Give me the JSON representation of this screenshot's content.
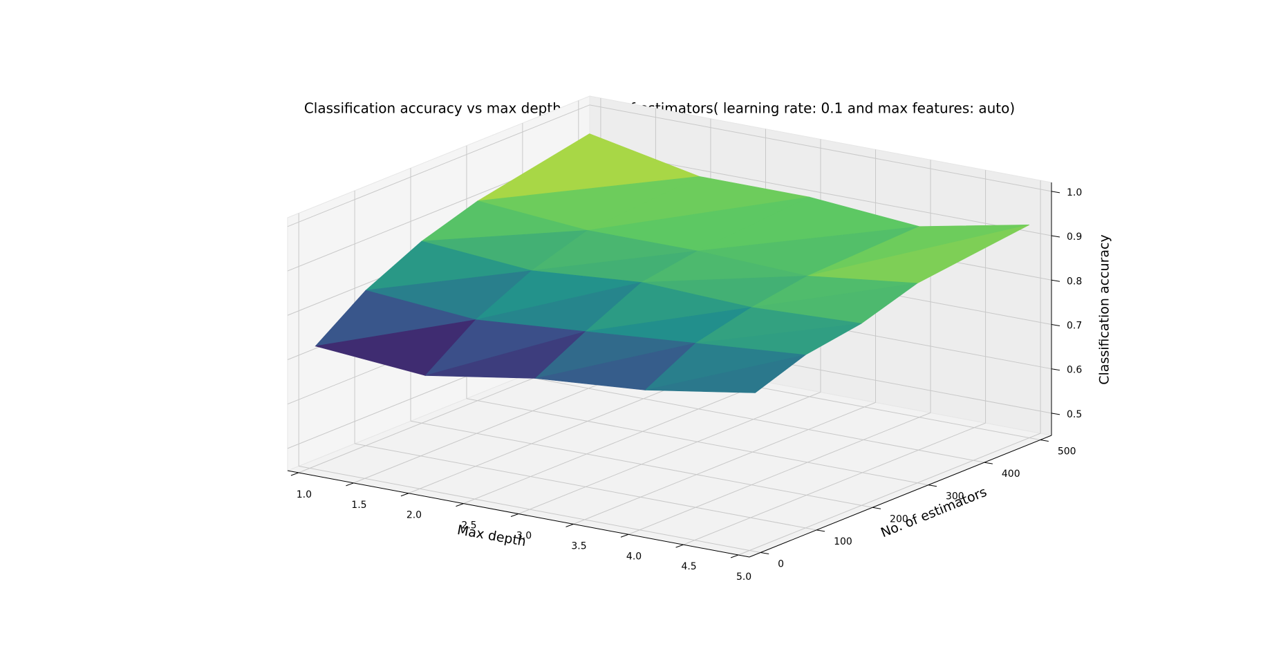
{
  "chart_data": {
    "type": "surface3d",
    "title": "Classification accuracy vs max depth and no. of estimators( learning rate: 0.1 and max features: auto)",
    "xlabel": "Max depth",
    "ylabel": "No. of estimators",
    "zlabel": "Classification accuracy",
    "x": [
      1,
      2,
      3,
      4,
      5
    ],
    "y": [
      10,
      100,
      200,
      300,
      500
    ],
    "z": [
      [
        0.72,
        0.8,
        0.86,
        0.9,
        0.95
      ],
      [
        0.7,
        0.78,
        0.84,
        0.88,
        0.9
      ],
      [
        0.74,
        0.8,
        0.86,
        0.88,
        0.9
      ],
      [
        0.76,
        0.82,
        0.85,
        0.87,
        0.88
      ],
      [
        0.8,
        0.84,
        0.86,
        0.9,
        0.93
      ]
    ],
    "colormap": "viridis",
    "xlim": [
      0.9,
      5.1
    ],
    "ylim": [
      -20,
      520
    ],
    "zlim": [
      0.45,
      1.02
    ],
    "xticks": [
      {
        "value": 1,
        "label": "1.0"
      },
      1.5,
      {
        "value": 2,
        "label": "2.0"
      },
      2.5,
      {
        "value": 3,
        "label": "3.0"
      },
      3.5,
      {
        "value": 4,
        "label": "4.0"
      },
      4.5,
      {
        "value": 5,
        "label": "5.0"
      }
    ],
    "yticks": [
      0,
      100,
      200,
      300,
      400,
      500
    ],
    "zticks": [
      0.5,
      0.6,
      0.7,
      0.8,
      0.9,
      {
        "value": 1,
        "label": "1.0"
      }
    ],
    "grid": true
  }
}
